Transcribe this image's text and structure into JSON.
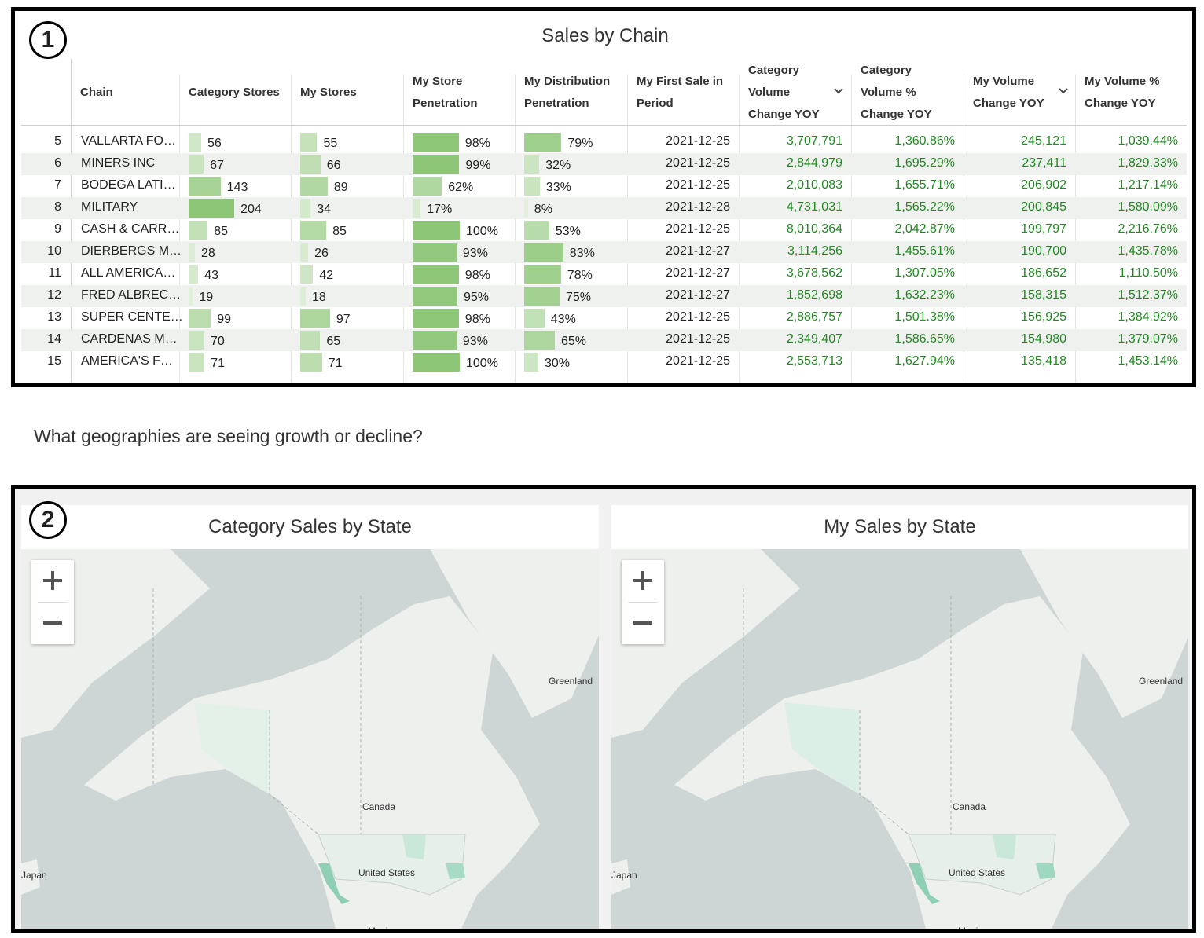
{
  "panel_1": {
    "badge": "1",
    "title": "Sales by Chain",
    "table": {
      "columns": [
        "Chain",
        "Category Stores",
        "My Stores",
        "My Store Penetration",
        "My Distribution Penetration",
        "My First Sale in Period",
        "Category Volume Change YOY",
        "Category Volume % Change YOY",
        "My Volume Change YOY",
        "My Volume % Change YOY"
      ],
      "rows": [
        [
          5,
          "VALLARTA FO…",
          56,
          55,
          {
            "value": 98,
            "label": "98%"
          },
          {
            "value": 79,
            "label": "79%"
          },
          "2021-12-25",
          "3,707,791",
          "1,360.86%",
          "245,121",
          "1,039.44%"
        ],
        [
          6,
          "MINERS INC",
          67,
          66,
          {
            "value": 99,
            "label": "99%"
          },
          {
            "value": 32,
            "label": "32%"
          },
          "2021-12-25",
          "2,844,979",
          "1,695.29%",
          "237,411",
          "1,829.33%"
        ],
        [
          7,
          "BODEGA LATI…",
          143,
          89,
          {
            "value": 62,
            "label": "62%"
          },
          {
            "value": 33,
            "label": "33%"
          },
          "2021-12-25",
          "2,010,083",
          "1,655.71%",
          "206,902",
          "1,217.14%"
        ],
        [
          8,
          "MILITARY",
          204,
          34,
          {
            "value": 17,
            "label": "17%"
          },
          {
            "value": 8,
            "label": "8%"
          },
          "2021-12-28",
          "4,731,031",
          "1,565.22%",
          "200,845",
          "1,580.09%"
        ],
        [
          9,
          "CASH & CARR…",
          85,
          85,
          {
            "value": 100,
            "label": "100%"
          },
          {
            "value": 53,
            "label": "53%"
          },
          "2021-12-25",
          "8,010,364",
          "2,042.87%",
          "199,797",
          "2,216.76%"
        ],
        [
          10,
          "DIERBERGS M…",
          28,
          26,
          {
            "value": 93,
            "label": "93%"
          },
          {
            "value": 83,
            "label": "83%"
          },
          "2021-12-27",
          "3,114,256",
          "1,455.61%",
          "190,700",
          "1,435.78%"
        ],
        [
          11,
          "ALL AMERICA…",
          43,
          42,
          {
            "value": 98,
            "label": "98%"
          },
          {
            "value": 78,
            "label": "78%"
          },
          "2021-12-27",
          "3,678,562",
          "1,307.05%",
          "186,652",
          "1,110.50%"
        ],
        [
          12,
          "FRED ALBREC…",
          19,
          18,
          {
            "value": 95,
            "label": "95%"
          },
          {
            "value": 75,
            "label": "75%"
          },
          "2021-12-27",
          "1,852,698",
          "1,632.23%",
          "158,315",
          "1,512.37%"
        ],
        [
          13,
          "SUPER CENTE…",
          99,
          97,
          {
            "value": 98,
            "label": "98%"
          },
          {
            "value": 43,
            "label": "43%"
          },
          "2021-12-25",
          "2,886,757",
          "1,501.38%",
          "156,925",
          "1,384.92%"
        ],
        [
          14,
          "CARDENAS M…",
          70,
          65,
          {
            "value": 93,
            "label": "93%"
          },
          {
            "value": 65,
            "label": "65%"
          },
          "2021-12-25",
          "2,349,407",
          "1,586.65%",
          "154,980",
          "1,379.07%"
        ],
        [
          15,
          "AMERICA'S F…",
          71,
          71,
          {
            "value": 100,
            "label": "100%"
          },
          {
            "value": 30,
            "label": "30%"
          },
          "2021-12-25",
          "2,553,713",
          "1,627.94%",
          "135,418",
          "1,453.14%"
        ]
      ]
    }
  },
  "question": "What geographies are seeing growth or decline?",
  "panel_2": {
    "badge": "2",
    "maps": [
      {
        "title": "Category Sales by State",
        "labels": [
          "Greenland",
          "Canada",
          "United States",
          "Japan",
          "Mexico"
        ]
      },
      {
        "title": "My Sales by State",
        "labels": [
          "Greenland",
          "Canada",
          "United States",
          "Japan",
          "Mexico"
        ]
      }
    ]
  }
}
